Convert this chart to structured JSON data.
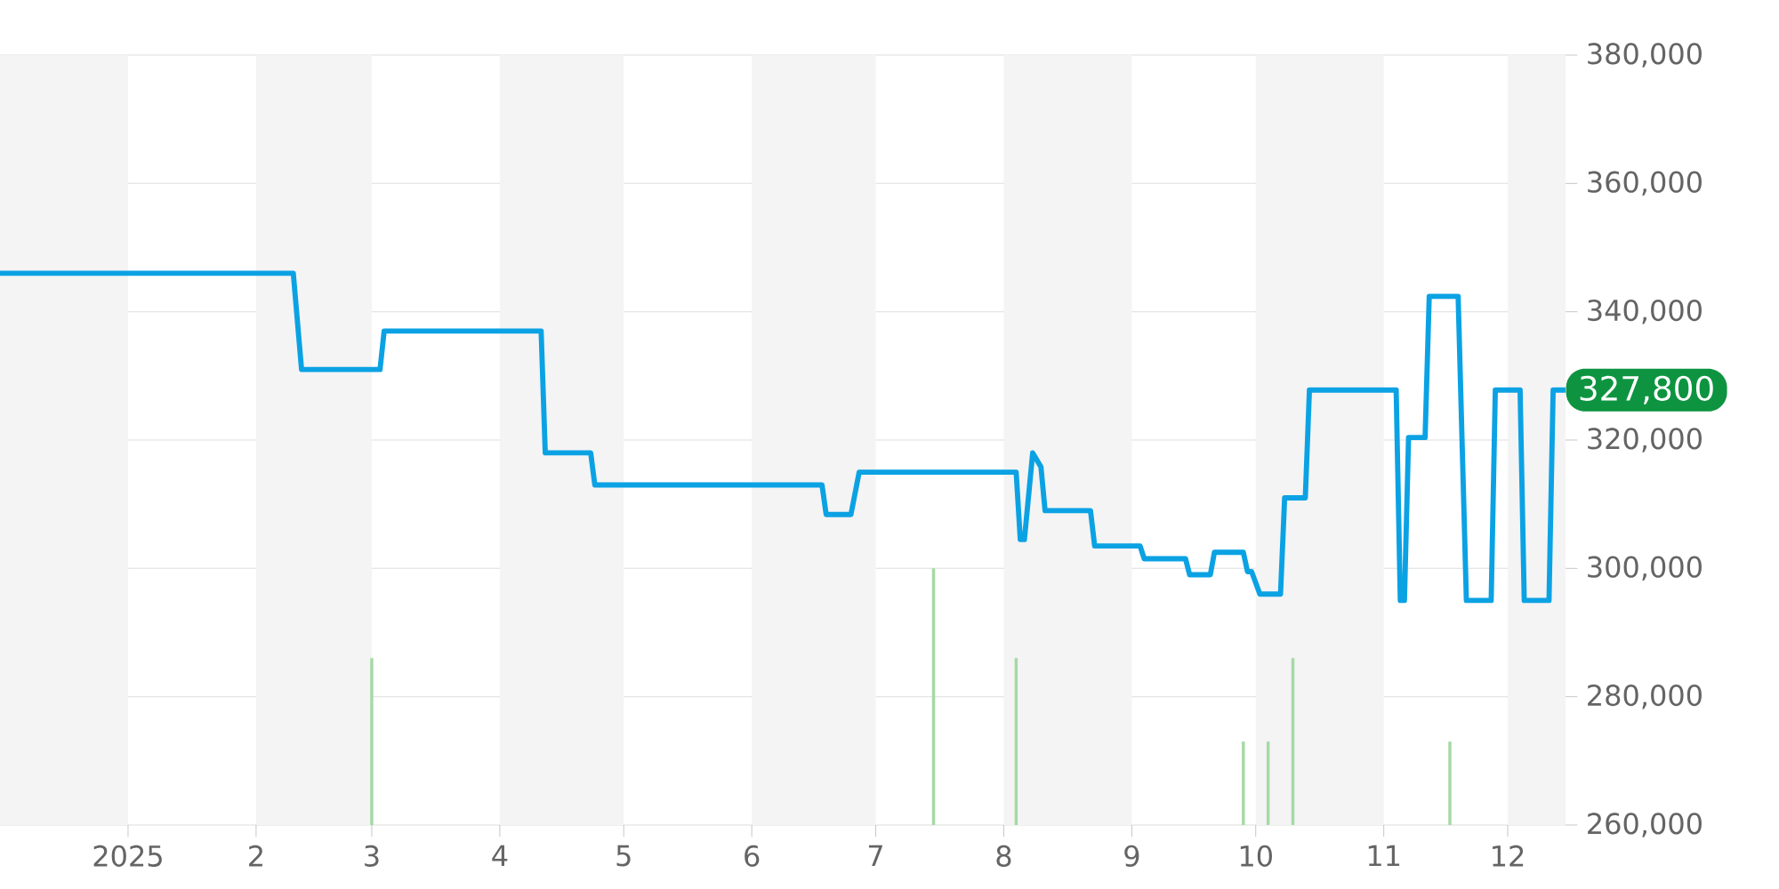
{
  "chart_data": {
    "type": "line",
    "xlim": [
      "2024-12-01",
      "2025-12-15"
    ],
    "xticks": [
      {
        "value": "2025-01-01",
        "label": "2025"
      },
      {
        "value": "2025-02-01",
        "label": "2"
      },
      {
        "value": "2025-03-01",
        "label": "3"
      },
      {
        "value": "2025-04-01",
        "label": "4"
      },
      {
        "value": "2025-05-01",
        "label": "5"
      },
      {
        "value": "2025-06-01",
        "label": "6"
      },
      {
        "value": "2025-07-01",
        "label": "7"
      },
      {
        "value": "2025-08-01",
        "label": "8"
      },
      {
        "value": "2025-09-01",
        "label": "9"
      },
      {
        "value": "2025-10-01",
        "label": "10"
      },
      {
        "value": "2025-11-01",
        "label": "11"
      },
      {
        "value": "2025-12-01",
        "label": "12"
      }
    ],
    "ylim": [
      260000,
      380000
    ],
    "yticks": [
      {
        "value": 260000,
        "label": "260,000"
      },
      {
        "value": 280000,
        "label": "280,000"
      },
      {
        "value": 300000,
        "label": "300,000"
      },
      {
        "value": 320000,
        "label": "320,000"
      },
      {
        "value": 340000,
        "label": "340,000"
      },
      {
        "value": 360000,
        "label": "360,000"
      },
      {
        "value": 380000,
        "label": "380,000"
      }
    ],
    "grid": "y",
    "bands": [
      {
        "axis": "x",
        "from": "2024-12-01",
        "to": "2025-01-01",
        "color": "#f4f4f4"
      },
      {
        "axis": "x",
        "from": "2025-02-01",
        "to": "2025-03-01",
        "color": "#f4f4f4"
      },
      {
        "axis": "x",
        "from": "2025-04-01",
        "to": "2025-05-01",
        "color": "#f4f4f4"
      },
      {
        "axis": "x",
        "from": "2025-06-01",
        "to": "2025-07-01",
        "color": "#f4f4f4"
      },
      {
        "axis": "x",
        "from": "2025-08-01",
        "to": "2025-09-01",
        "color": "#f4f4f4"
      },
      {
        "axis": "x",
        "from": "2025-10-01",
        "to": "2025-11-01",
        "color": "#f4f4f4"
      },
      {
        "axis": "x",
        "from": "2025-12-01",
        "to": "2025-12-15",
        "color": "#f4f4f4"
      }
    ],
    "series": [
      {
        "type": "bar",
        "color": "#a5d9a5",
        "x": [
          "2025-03-01",
          "2025-07-15",
          "2025-08-04",
          "2025-09-28",
          "2025-10-04",
          "2025-10-10",
          "2025-11-17"
        ],
        "values": [
          286000,
          300000,
          286000,
          273000,
          273000,
          286000,
          273000
        ]
      },
      {
        "color": "#0ba2e4",
        "x": [
          "2024-12-01",
          "2025-02-10",
          "2025-02-12",
          "2025-03-03",
          "2025-03-04",
          "2025-04-11",
          "2025-04-12",
          "2025-04-23",
          "2025-04-24",
          "2025-06-18",
          "2025-06-19",
          "2025-06-25",
          "2025-06-27",
          "2025-08-04",
          "2025-08-05",
          "2025-08-06",
          "2025-08-08",
          "2025-08-10",
          "2025-08-11",
          "2025-08-22",
          "2025-08-23",
          "2025-09-03",
          "2025-09-04",
          "2025-09-14",
          "2025-09-15",
          "2025-09-20",
          "2025-09-21",
          "2025-09-28",
          "2025-09-29",
          "2025-09-30",
          "2025-10-02",
          "2025-10-07",
          "2025-10-08",
          "2025-10-13",
          "2025-10-14",
          "2025-11-04",
          "2025-11-05",
          "2025-11-06",
          "2025-11-07",
          "2025-11-11",
          "2025-11-12",
          "2025-11-19",
          "2025-11-21",
          "2025-11-27",
          "2025-11-28",
          "2025-12-04",
          "2025-12-05",
          "2025-12-11",
          "2025-12-12",
          "2025-12-15"
        ],
        "values": [
          346000,
          346000,
          331000,
          331000,
          337000,
          337000,
          318000,
          318000,
          313000,
          313000,
          308400,
          308400,
          315000,
          315000,
          304500,
          304500,
          318000,
          315800,
          309000,
          309000,
          303500,
          303500,
          301500,
          301500,
          299000,
          299000,
          302500,
          302500,
          299500,
          299500,
          296000,
          296000,
          311000,
          311000,
          327800,
          327800,
          295000,
          295000,
          320400,
          320400,
          342400,
          342400,
          295000,
          295000,
          327800,
          327800,
          295000,
          295000,
          327800,
          327800
        ]
      }
    ],
    "annotations": [
      {
        "text": "327,800",
        "x": "2025-12-15",
        "y": 327800
      }
    ]
  }
}
